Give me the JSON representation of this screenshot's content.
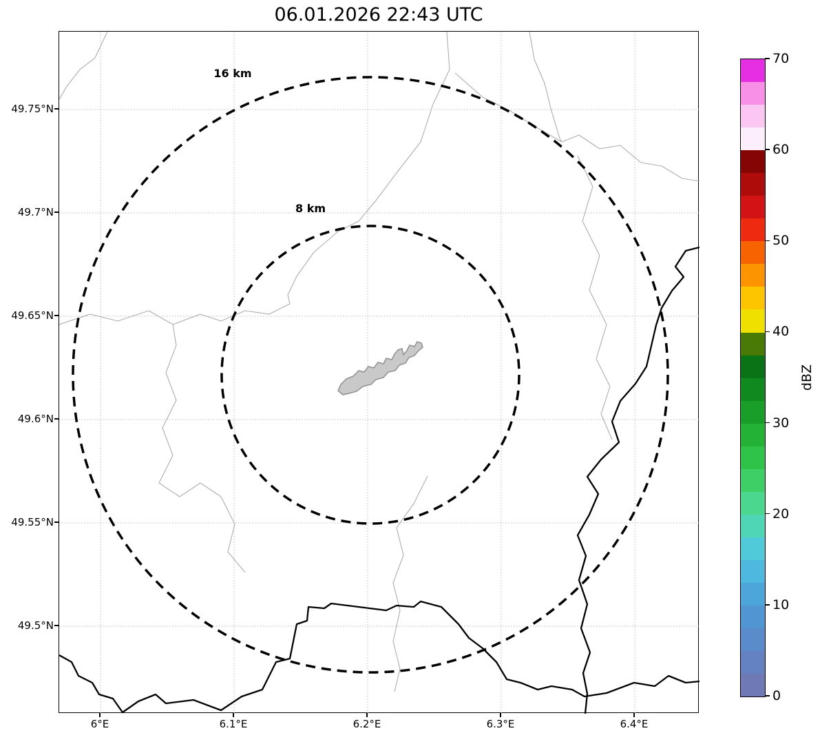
{
  "title": "06.01.2026 22:43 UTC",
  "map": {
    "rings": [
      {
        "label": "16 km",
        "radius_km": 16
      },
      {
        "label": "8 km",
        "radius_km": 8
      }
    ]
  },
  "axes": {
    "x_tick_labels": [
      "6°E",
      "6.1°E",
      "6.2°E",
      "6.3°E",
      "6.4°E"
    ],
    "y_tick_labels": [
      "49.75°N",
      "49.7°N",
      "49.65°N",
      "49.6°N",
      "49.55°N",
      "49.5°N"
    ]
  },
  "colorbar": {
    "label": "dBZ",
    "min": 0,
    "max": 70,
    "tick_labels": [
      "0",
      "10",
      "20",
      "30",
      "40",
      "50",
      "60",
      "70"
    ],
    "colors_bottom_to_top": [
      "#6f79b5",
      "#6482c2",
      "#5a8ccb",
      "#5096d2",
      "#4da6d9",
      "#4fb8de",
      "#50cad8",
      "#4fd6b4",
      "#4cd78e",
      "#3ed066",
      "#2fc449",
      "#23b236",
      "#199e29",
      "#108a1e",
      "#0a7315",
      "#497a06",
      "#f0e000",
      "#fdc400",
      "#fb9400",
      "#f66300",
      "#ee2a10",
      "#d11313",
      "#ae0b0b",
      "#850505",
      "#fdeefb",
      "#fcc6f2",
      "#f990e8",
      "#e62ee2"
    ]
  }
}
